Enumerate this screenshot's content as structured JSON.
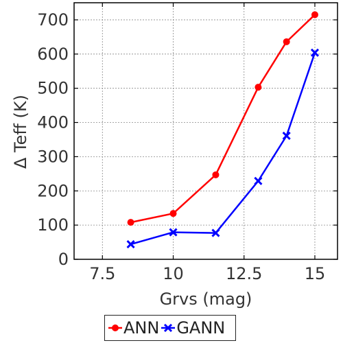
{
  "chart_data": {
    "type": "line",
    "title": "",
    "xlabel": "Grvs (mag)",
    "ylabel": "Δ Teff (K)",
    "xlim": [
      6.5,
      15.8
    ],
    "ylim": [
      0,
      750
    ],
    "xticks": [
      7.5,
      10,
      12.5,
      15
    ],
    "xtick_labels": [
      "7.5",
      "10",
      "12.5",
      "15"
    ],
    "yticks": [
      0,
      100,
      200,
      300,
      400,
      500,
      600,
      700
    ],
    "ytick_labels": [
      "0",
      "100",
      "200",
      "300",
      "400",
      "500",
      "600",
      "700"
    ],
    "grid": true,
    "legend_position": "below",
    "series": [
      {
        "name": "ANN",
        "color": "#ff0000",
        "marker": "circle",
        "x": [
          8.5,
          10,
          11.5,
          13,
          14,
          15
        ],
        "y": [
          108,
          134,
          247,
          503,
          636,
          715
        ]
      },
      {
        "name": "GANN",
        "color": "#0000ff",
        "marker": "x",
        "x": [
          8.5,
          10,
          11.5,
          13,
          14,
          15
        ],
        "y": [
          44,
          79,
          77,
          229,
          361,
          604
        ]
      }
    ]
  }
}
